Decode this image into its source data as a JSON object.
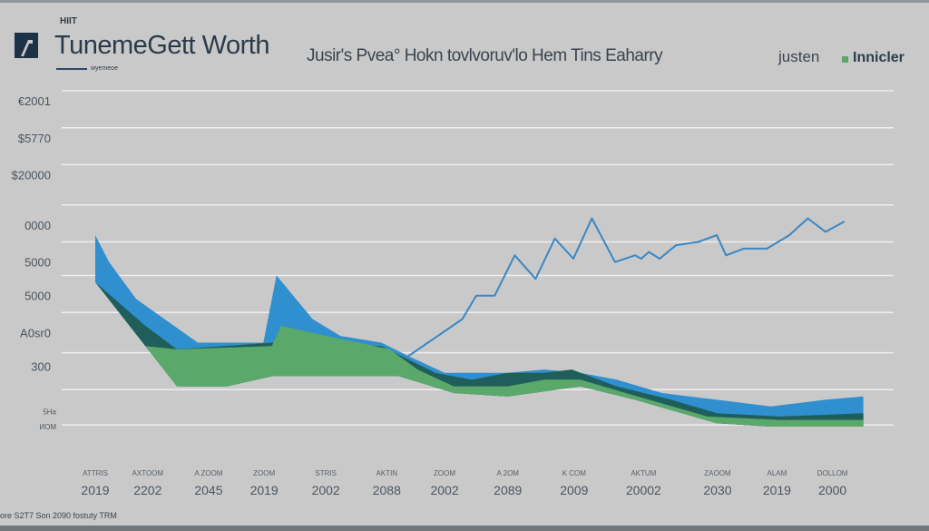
{
  "header": {
    "small_label": "HIIT",
    "title": "TunemeGett Worth",
    "subtitle": "wyemeoe",
    "headline": "Jusir's Pvea° Hokn tovlvoruv'lo Hem Tins Eaharry",
    "legend_left": "justen",
    "legend_right": "Innicler"
  },
  "footer": "ore S2T7 Son 2090 fostuty TRM",
  "colors": {
    "background": "#c9c9c9",
    "blue_line": "#3a87c4",
    "blue_area": "#2f8fcf",
    "teal_area": "#1f5e5a",
    "green_area": "#5aa86a",
    "grid": "#eeeeee",
    "text": "#3a4450"
  },
  "chart_data": {
    "type": "area",
    "title": "TunemeGett Worth",
    "xlim": [
      0,
      100
    ],
    "ylim": [
      0,
      10
    ],
    "grid": true,
    "legend_position": "top-right",
    "gridlines": [
      10,
      8.9,
      7.8,
      6.6,
      5.5,
      4.5,
      3.4,
      2.2,
      1.1,
      0.05
    ],
    "y_ticks": [
      {
        "value": 9.7,
        "label": "€2001"
      },
      {
        "value": 8.6,
        "label": "$5770"
      },
      {
        "value": 7.5,
        "label": "$20000"
      },
      {
        "value": 6.0,
        "label": "0000"
      },
      {
        "value": 4.9,
        "label": "5000"
      },
      {
        "value": 3.9,
        "label": "5000"
      },
      {
        "value": 2.8,
        "label": "A0sr0"
      },
      {
        "value": 1.8,
        "label": "300"
      },
      {
        "value": 0.5,
        "label": "5Ha"
      },
      {
        "value": 0.05,
        "label": "ИОМ"
      }
    ],
    "x_ticks": [
      {
        "value": 0,
        "top": "ATTRIS",
        "label": "2019"
      },
      {
        "value": 6.8,
        "top": "AXTOOM",
        "label": "2202"
      },
      {
        "value": 14.7,
        "top": "A ZOOM",
        "label": "2045"
      },
      {
        "value": 21.9,
        "top": "ZOOM",
        "label": "2019"
      },
      {
        "value": 29.9,
        "top": "STRIS",
        "label": "2002"
      },
      {
        "value": 37.8,
        "top": "AKTIN",
        "label": "2088"
      },
      {
        "value": 45.3,
        "top": "ZOOM",
        "label": "2002"
      },
      {
        "value": 53.5,
        "top": "A 2OM",
        "label": "2089"
      },
      {
        "value": 62.1,
        "top": "K COM",
        "label": "2009"
      },
      {
        "value": 71.1,
        "top": "AKTUM",
        "label": "20002"
      },
      {
        "value": 80.7,
        "top": "ZAOOM",
        "label": "2030"
      },
      {
        "value": 88.4,
        "top": "ALAM",
        "label": "2019"
      },
      {
        "value": 95.6,
        "top": "DOLLOM",
        "label": "2000"
      }
    ],
    "baseline": [
      [
        0,
        4.3
      ],
      [
        6.5,
        2.4
      ],
      [
        10.6,
        1.2
      ],
      [
        17.1,
        1.2
      ],
      [
        22.9,
        1.5
      ],
      [
        39.4,
        1.5
      ],
      [
        46.5,
        1.0
      ],
      [
        53.5,
        0.9
      ],
      [
        62.9,
        1.2
      ],
      [
        70,
        0.8
      ],
      [
        80.6,
        0.1
      ],
      [
        87.6,
        0
      ],
      [
        99.6,
        0
      ]
    ],
    "series": [
      {
        "name": "blue-area",
        "type": "area",
        "color": "#2f8fcf",
        "values": [
          [
            0,
            5.7
          ],
          [
            1.8,
            4.9
          ],
          [
            5.3,
            3.8
          ],
          [
            13.3,
            2.5
          ],
          [
            21.8,
            2.5
          ],
          [
            23.5,
            4.5
          ],
          [
            28.2,
            3.2
          ],
          [
            31.8,
            2.7
          ],
          [
            37.1,
            2.5
          ],
          [
            40.6,
            2.1
          ],
          [
            45.3,
            1.6
          ],
          [
            53.5,
            1.6
          ],
          [
            58.2,
            1.7
          ],
          [
            62.9,
            1.6
          ],
          [
            67.6,
            1.4
          ],
          [
            73.5,
            1.0
          ],
          [
            80.6,
            0.8
          ],
          [
            87.6,
            0.6
          ],
          [
            94.7,
            0.8
          ],
          [
            99.6,
            0.9
          ]
        ]
      },
      {
        "name": "teal-area",
        "type": "area",
        "color": "#1f5e5a",
        "values": [
          [
            0,
            4.3
          ],
          [
            6.5,
            3.0
          ],
          [
            10.6,
            2.3
          ],
          [
            22.9,
            2.5
          ],
          [
            37.1,
            2.4
          ],
          [
            40.6,
            2.0
          ],
          [
            44.1,
            1.6
          ],
          [
            48.8,
            1.4
          ],
          [
            53.5,
            1.6
          ],
          [
            58.2,
            1.6
          ],
          [
            61.8,
            1.7
          ],
          [
            67.6,
            1.2
          ],
          [
            74.7,
            0.8
          ],
          [
            80.6,
            0.4
          ],
          [
            88.8,
            0.3
          ],
          [
            99.6,
            0.4
          ]
        ]
      },
      {
        "name": "green-area",
        "type": "area",
        "color": "#5aa86a",
        "values": [
          [
            6.5,
            2.4
          ],
          [
            10.6,
            2.3
          ],
          [
            22.9,
            2.4
          ],
          [
            24.1,
            3.0
          ],
          [
            30,
            2.7
          ],
          [
            38.2,
            2.3
          ],
          [
            41.8,
            1.7
          ],
          [
            46.5,
            1.2
          ],
          [
            53.5,
            1.2
          ],
          [
            58.2,
            1.4
          ],
          [
            62.9,
            1.4
          ],
          [
            68.8,
            1.0
          ],
          [
            79.4,
            0.3
          ],
          [
            88.8,
            0.2
          ],
          [
            99.6,
            0.2
          ]
        ]
      },
      {
        "name": "blue-line",
        "type": "line",
        "color": "#3a87c4",
        "values": [
          [
            40.6,
            2.1
          ],
          [
            47.6,
            3.2
          ],
          [
            49.4,
            3.9
          ],
          [
            51.8,
            3.9
          ],
          [
            54.4,
            5.1
          ],
          [
            57.1,
            4.4
          ],
          [
            59.6,
            5.6
          ],
          [
            62.0,
            5.0
          ],
          [
            64.4,
            6.2
          ],
          [
            67.4,
            4.9
          ],
          [
            70.0,
            5.1
          ],
          [
            70.8,
            5.0
          ],
          [
            71.8,
            5.2
          ],
          [
            73.2,
            5.0
          ],
          [
            75.3,
            5.4
          ],
          [
            78.2,
            5.5
          ],
          [
            80.6,
            5.7
          ],
          [
            81.8,
            5.1
          ],
          [
            84.1,
            5.3
          ],
          [
            87.1,
            5.3
          ],
          [
            90.0,
            5.7
          ],
          [
            92.4,
            6.2
          ],
          [
            94.7,
            5.8
          ],
          [
            97.1,
            6.1
          ]
        ]
      }
    ]
  }
}
